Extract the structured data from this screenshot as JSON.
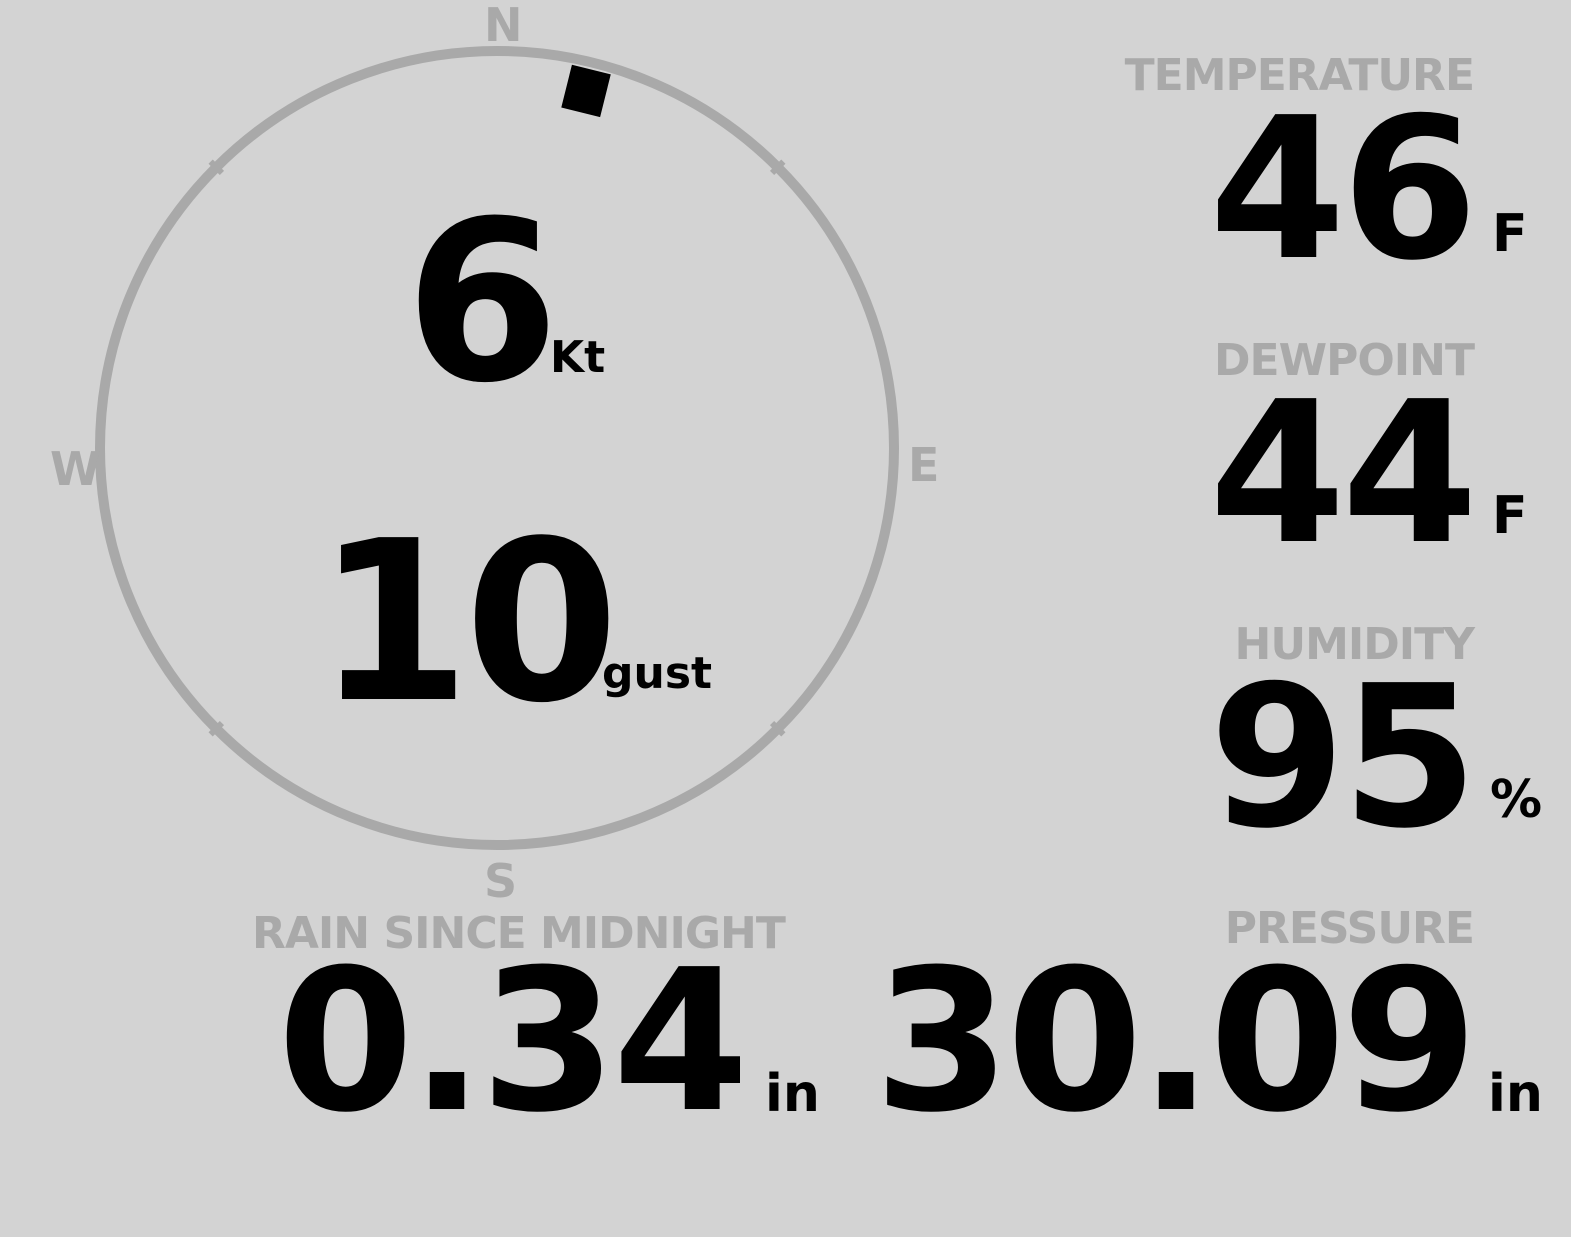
{
  "colors": {
    "background": "#d3d3d3",
    "label": "#a9a9a9",
    "value": "#000000"
  },
  "wind": {
    "cardinals": {
      "n": "N",
      "e": "E",
      "s": "S",
      "w": "W"
    },
    "direction_deg": 14,
    "speed": "6",
    "speed_unit": "Kt",
    "gust": "10",
    "gust_unit": "gust"
  },
  "temperature": {
    "label": "TEMPERATURE",
    "value": "46",
    "unit": "F"
  },
  "dewpoint": {
    "label": "DEWPOINT",
    "value": "44",
    "unit": "F"
  },
  "humidity": {
    "label": "HUMIDITY",
    "value": "95",
    "unit": "%"
  },
  "rain": {
    "label": "RAIN SINCE MIDNIGHT",
    "value": "0.34",
    "unit": "in"
  },
  "pressure": {
    "label": "PRESSURE",
    "value": "30.09",
    "unit": "in"
  }
}
